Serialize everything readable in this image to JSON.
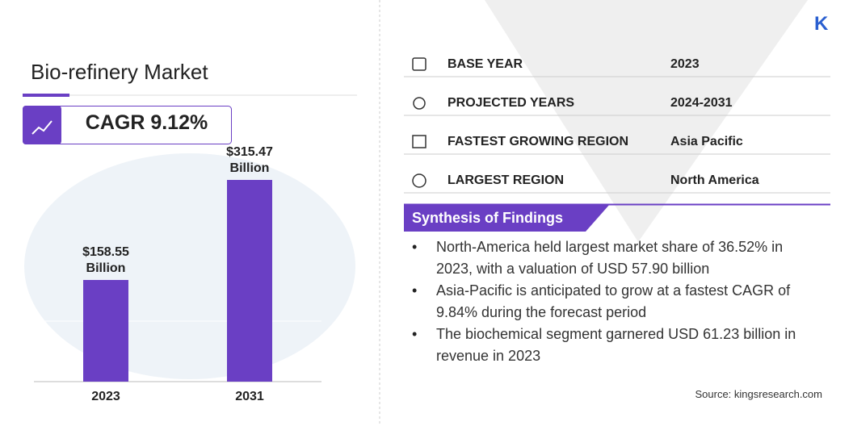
{
  "chart_data": {
    "type": "bar",
    "title": "Bio-refinery Market",
    "cagr": "CAGR 9.12%",
    "categories": [
      "2023",
      "2031"
    ],
    "values": [
      158.55,
      315.47
    ],
    "value_labels": [
      "$158.55 Billion",
      "$315.47 Billion"
    ],
    "color": "#6a3fc4"
  },
  "logo": "K",
  "info_table": [
    {
      "label": "BASE YEAR",
      "value": "2023"
    },
    {
      "label": "PROJECTED YEARS",
      "value": "2024-2031"
    },
    {
      "label": "FASTEST GROWING REGION",
      "value": "Asia Pacific"
    },
    {
      "label": "LARGEST REGION",
      "value": "North America"
    }
  ],
  "synthesis": {
    "heading": "Synthesis of Findings",
    "bullets": [
      "North-America held largest market share of 36.52% in 2023, with a valuation of USD 57.90 billion",
      "Asia-Pacific is anticipated to grow at a fastest CAGR of 9.84% during the forecast period",
      "The biochemical segment garnered USD 61.23 billion in revenue in 2023"
    ]
  },
  "source": "Source:  kingsresearch.com"
}
